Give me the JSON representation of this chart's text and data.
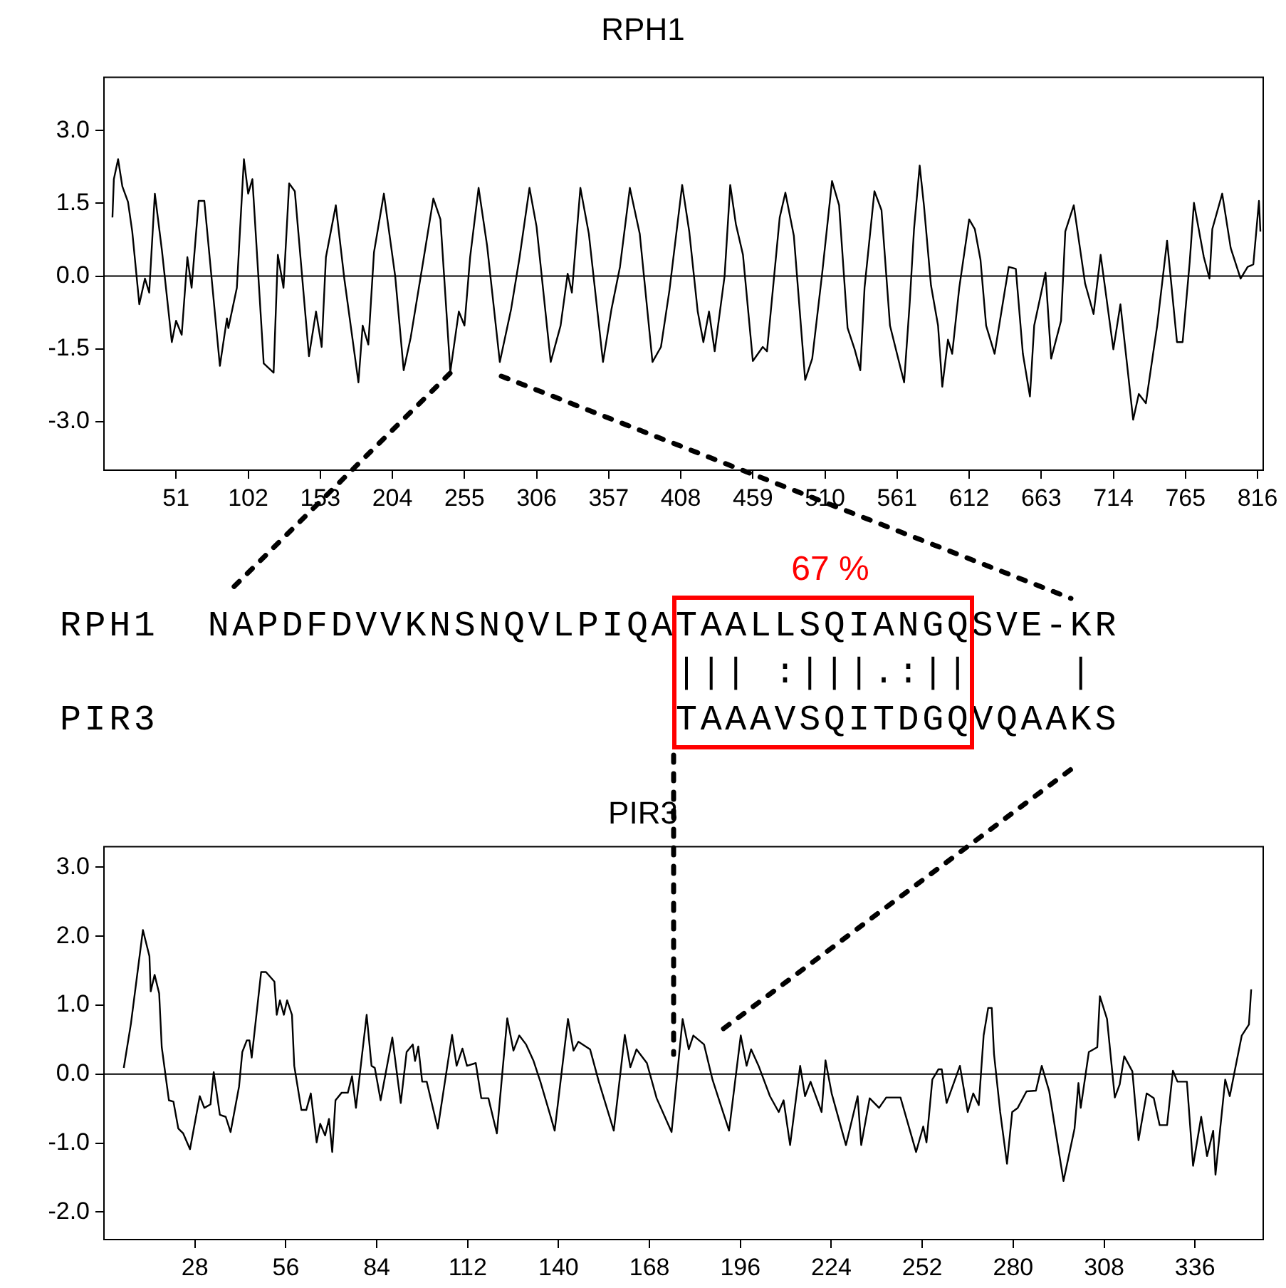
{
  "chart_data": [
    {
      "type": "line",
      "title": "RPH1",
      "marker": "none",
      "xlim": [
        0,
        820
      ],
      "ylim": [
        -4,
        4.1
      ],
      "xticks": [
        51,
        102,
        153,
        204,
        255,
        306,
        357,
        408,
        459,
        510,
        561,
        612,
        663,
        714,
        765,
        816
      ],
      "yticks": [
        {
          "value": -3,
          "label": "-3.0"
        },
        {
          "value": -1.5,
          "label": "-1.5"
        },
        {
          "value": 0,
          "label": "0.0"
        },
        {
          "value": 1.5,
          "label": "1.5"
        },
        {
          "value": 3,
          "label": "3.0"
        }
      ],
      "ref_lines": [
        {
          "axis": "y",
          "value": 0
        }
      ],
      "series": [
        {
          "color": "#000000",
          "x": [
            6,
            7,
            10,
            13,
            17,
            20,
            25,
            29,
            32,
            36,
            41,
            48,
            51,
            55,
            59,
            62,
            67,
            71,
            82,
            87,
            88,
            94,
            99,
            102,
            105,
            113,
            120,
            123,
            127,
            131,
            135,
            145,
            150,
            154,
            157,
            164,
            170,
            180,
            183,
            187,
            191,
            198,
            206,
            212,
            217,
            226,
            233,
            238,
            245,
            251,
            255,
            259,
            265,
            271,
            280,
            288,
            294,
            301,
            306,
            316,
            323,
            328,
            331,
            337,
            343,
            353,
            359,
            365,
            372,
            379,
            388,
            394,
            400,
            409,
            414,
            420,
            424,
            428,
            432,
            439,
            443,
            447,
            452,
            459,
            466,
            469,
            478,
            482,
            488,
            496,
            501,
            508,
            515,
            520,
            526,
            531,
            535,
            538,
            545,
            550,
            556,
            566,
            570,
            573,
            577,
            580,
            585,
            590,
            593,
            597,
            600,
            605,
            612,
            616,
            620,
            624,
            630,
            637,
            640,
            645,
            650,
            655,
            658,
            666,
            670,
            677,
            680,
            686,
            694,
            700,
            705,
            714,
            719,
            728,
            732,
            737,
            745,
            752,
            759,
            763,
            768,
            771,
            778,
            782,
            784,
            791,
            797,
            804,
            809,
            813,
            817,
            818
          ],
          "values": [
            1.21,
            2.0,
            2.41,
            1.85,
            1.53,
            0.92,
            -0.58,
            -0.05,
            -0.34,
            1.7,
            0.53,
            -1.36,
            -0.92,
            -1.21,
            0.39,
            -0.24,
            1.55,
            1.55,
            -1.85,
            -0.87,
            -1.07,
            -0.24,
            2.41,
            1.7,
            2.0,
            -1.8,
            -1.99,
            0.44,
            -0.24,
            1.91,
            1.75,
            -1.65,
            -0.73,
            -1.46,
            0.39,
            1.46,
            -0.05,
            -2.19,
            -1.02,
            -1.41,
            0.49,
            1.7,
            0,
            -1.94,
            -1.26,
            0.34,
            1.6,
            1.17,
            -1.97,
            -0.73,
            -1.02,
            0.39,
            1.82,
            0.63,
            -1.77,
            -0.68,
            0.39,
            1.82,
            1.02,
            -1.77,
            -1.02,
            0.05,
            -0.34,
            1.82,
            0.87,
            -1.77,
            -0.68,
            0.19,
            1.82,
            0.87,
            -1.77,
            -1.46,
            -0.29,
            1.88,
            0.92,
            -0.73,
            -1.36,
            -0.73,
            -1.55,
            0,
            1.88,
            1.07,
            0.44,
            -1.75,
            -1.46,
            -1.55,
            1.21,
            1.72,
            0.83,
            -2.14,
            -1.7,
            0.05,
            1.96,
            1.46,
            -1.07,
            -1.51,
            -1.94,
            -0.24,
            1.75,
            1.36,
            -1.02,
            -2.19,
            -0.53,
            0.97,
            2.28,
            1.46,
            -0.19,
            -1.02,
            -2.28,
            -1.31,
            -1.6,
            -0.24,
            1.17,
            0.97,
            0.34,
            -1.02,
            -1.6,
            -0.34,
            0.19,
            0.15,
            -1.6,
            -2.48,
            -1.02,
            0.07,
            -1.7,
            -0.92,
            0.92,
            1.46,
            -0.15,
            -0.78,
            0.44,
            -1.51,
            -0.58,
            -2.96,
            -2.43,
            -2.62,
            -1.02,
            0.73,
            -1.36,
            -1.36,
            0.29,
            1.51,
            0.39,
            -0.05,
            0.97,
            1.7,
            0.58,
            -0.05,
            0.19,
            0.24,
            1.55,
            0.92
          ]
        }
      ]
    },
    {
      "type": "other",
      "annotations": [
        "67 %",
        "RPH1  NAPDFDVVKNSNQVLPIQATAALLSQIANGQSVE-KR",
        "                         ||| :|||.:||    |",
        "PIR3                     TAAAVSQITDGQVQAAKS"
      ]
    },
    {
      "type": "line",
      "title": "PIR3",
      "marker": "none",
      "xlim": [
        0,
        357
      ],
      "ylim": [
        -2.4,
        3.3
      ],
      "xticks": [
        28,
        56,
        84,
        112,
        140,
        168,
        196,
        224,
        252,
        280,
        308,
        336
      ],
      "yticks": [
        {
          "value": -2,
          "label": "-2.0"
        },
        {
          "value": -1,
          "label": "-1.0"
        },
        {
          "value": 0,
          "label": "0.0"
        },
        {
          "value": 1,
          "label": "1.0"
        },
        {
          "value": 2,
          "label": "2.0"
        },
        {
          "value": 3,
          "label": "3.0"
        }
      ],
      "ref_lines": [
        {
          "axis": "y",
          "value": 0
        }
      ],
      "series": [
        {
          "color": "#000000",
          "x": [
            6.1,
            8.3,
            12,
            14,
            14.4,
            15.6,
            17,
            17.8,
            20,
            21.4,
            22.9,
            24.4,
            26.5,
            29.5,
            30.9,
            32.8,
            33.8,
            35.7,
            37.5,
            39,
            41.6,
            42.6,
            44,
            44.8,
            45.5,
            48.4,
            49.9,
            52.5,
            53.2,
            54.2,
            55.4,
            56.4,
            57.9,
            58.6,
            60.8,
            62.3,
            63.7,
            65.5,
            66.6,
            68.1,
            69.3,
            70.3,
            71.3,
            73.2,
            75.1,
            76.4,
            77.6,
            80.9,
            82.4,
            83.4,
            85.2,
            88.8,
            91.4,
            93.2,
            95.1,
            95.8,
            96.8,
            98,
            99.4,
            102.8,
            107.2,
            108.6,
            110.4,
            111.8,
            114.5,
            116.2,
            118.4,
            121,
            124.2,
            126.1,
            127.9,
            130,
            132.3,
            134.4,
            137.4,
            138.8,
            142.9,
            144.6,
            146.1,
            149.7,
            152.4,
            157,
            160.4,
            162.1,
            164,
            167.2,
            170.2,
            174.8,
            178.2,
            180.1,
            181.5,
            184.8,
            187.4,
            192.5,
            196.1,
            197.9,
            199.3,
            201.6,
            205.1,
            207.8,
            209.3,
            211.3,
            214.4,
            215.9,
            217.6,
            221,
            222.2,
            224.1,
            228.5,
            232.1,
            233.2,
            235.8,
            238.7,
            240.9,
            245.3,
            250.1,
            252.3,
            253.3,
            255.1,
            257,
            258,
            259.5,
            263.6,
            266,
            267.7,
            269.4,
            270.9,
            272.3,
            273.4,
            274.1,
            276,
            278.1,
            279.7,
            281.4,
            284.1,
            287,
            288.8,
            291.1,
            295.5,
            298.9,
            300.1,
            300.8,
            303.3,
            305.9,
            306.7,
            308.9,
            311.3,
            312.8,
            314.2,
            316.7,
            318.6,
            321.1,
            323.3,
            325.1,
            327.4,
            329.2,
            330.6,
            333.5,
            335.4,
            337.9,
            339.7,
            341.6,
            342.3,
            345.3,
            346.7,
            348.5,
            350.4,
            352.6,
            353.3
          ],
          "values": [
            0.09,
            0.73,
            2.09,
            1.71,
            1.2,
            1.44,
            1.17,
            0.39,
            -0.38,
            -0.4,
            -0.79,
            -0.86,
            -1.09,
            -0.32,
            -0.49,
            -0.44,
            0.03,
            -0.59,
            -0.62,
            -0.84,
            -0.18,
            0.32,
            0.49,
            0.49,
            0.24,
            1.48,
            1.48,
            1.34,
            0.86,
            1.07,
            0.86,
            1.07,
            0.86,
            0.12,
            -0.52,
            -0.52,
            -0.28,
            -0.99,
            -0.72,
            -0.89,
            -0.65,
            -1.13,
            -0.38,
            -0.27,
            -0.27,
            -0.03,
            -0.49,
            0.86,
            0.12,
            0.09,
            -0.38,
            0.53,
            -0.42,
            0.32,
            0.43,
            0.19,
            0.4,
            -0.11,
            -0.11,
            -0.79,
            0.57,
            0.12,
            0.37,
            0.12,
            0.16,
            -0.35,
            -0.35,
            -0.86,
            0.81,
            0.34,
            0.56,
            0.43,
            0.19,
            -0.11,
            -0.59,
            -0.82,
            0.8,
            0.34,
            0.47,
            0.36,
            -0.11,
            -0.82,
            0.57,
            0.1,
            0.36,
            0.16,
            -0.35,
            -0.84,
            0.8,
            0.36,
            0.56,
            0.43,
            -0.08,
            -0.82,
            0.56,
            0.12,
            0.36,
            0.12,
            -0.32,
            -0.55,
            -0.38,
            -1.03,
            0.12,
            -0.32,
            -0.11,
            -0.55,
            0.2,
            -0.28,
            -1.03,
            -0.32,
            -1.03,
            -0.35,
            -0.49,
            -0.34,
            -0.34,
            -1.13,
            -0.76,
            -0.99,
            -0.08,
            0.07,
            0.07,
            -0.42,
            0.12,
            -0.55,
            -0.28,
            -0.45,
            0.56,
            0.96,
            0.96,
            0.29,
            -0.55,
            -1.3,
            -0.55,
            -0.49,
            -0.25,
            -0.24,
            0.12,
            -0.25,
            -1.55,
            -0.79,
            -0.13,
            -0.49,
            0.32,
            0.39,
            1.13,
            0.8,
            -0.34,
            -0.15,
            0.26,
            0.04,
            -0.96,
            -0.28,
            -0.35,
            -0.74,
            -0.74,
            0.05,
            -0.11,
            -0.11,
            -1.33,
            -0.62,
            -1.19,
            -0.82,
            -1.46,
            -0.08,
            -0.32,
            0.11,
            0.56,
            0.72,
            1.23
          ]
        }
      ]
    }
  ]
}
